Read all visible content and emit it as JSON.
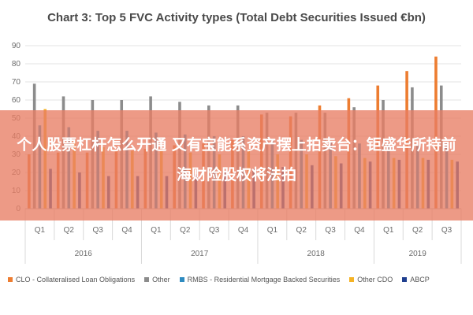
{
  "chart_data": {
    "type": "bar",
    "title": "Chart 3: Top 5 FVC Activity types (Total Debt Securities Issued €bn)",
    "xlabel": "",
    "ylabel": "",
    "ylim": [
      0,
      90
    ],
    "yticks": [
      "0",
      "10",
      "20",
      "30",
      "40",
      "50",
      "60",
      "70",
      "80",
      "90"
    ],
    "grid": true,
    "legend_position": "bottom",
    "categories": [
      "Q1",
      "Q2",
      "Q3",
      "Q4",
      "Q1",
      "Q2",
      "Q3",
      "Q4",
      "Q1",
      "Q2",
      "Q3",
      "Q4",
      "Q1",
      "Q2",
      "Q3"
    ],
    "year_groups": [
      {
        "label": "2016",
        "count": 4
      },
      {
        "label": "2017",
        "count": 4
      },
      {
        "label": "2018",
        "count": 4
      },
      {
        "label": "2019",
        "count": 3
      }
    ],
    "series": [
      {
        "name": "CLO - Collateralised Loan Obligations",
        "color": "#ed7d31",
        "values": [
          30,
          31,
          31,
          32,
          33,
          35,
          36,
          38,
          52,
          51,
          57,
          61,
          68,
          76,
          84
        ]
      },
      {
        "name": "Other",
        "color": "#8c8c8c",
        "values": [
          69,
          62,
          60,
          60,
          62,
          59,
          57,
          57,
          53,
          53,
          53,
          56,
          60,
          67,
          68
        ]
      },
      {
        "name": "RMBS - Residential Mortgage Backed Securities",
        "color": "#2e8bc0",
        "values": [
          46,
          45,
          43,
          43,
          42,
          41,
          40,
          40,
          38,
          38,
          37,
          36,
          36,
          35,
          36
        ]
      },
      {
        "name": "Other CDO",
        "color": "#f5b325",
        "values": [
          55,
          38,
          34,
          32,
          32,
          31,
          30,
          32,
          30,
          30,
          29,
          28,
          28,
          28,
          27
        ]
      },
      {
        "name": "ABCP",
        "color": "#1f3f8f",
        "values": [
          22,
          20,
          18,
          18,
          18,
          19,
          20,
          22,
          23,
          24,
          25,
          26,
          27,
          27,
          26
        ]
      }
    ]
  },
  "overlay": {
    "text": "个人股票杠杆怎么开通 又有宝能系资产摆上拍卖台：钜盛华所持前海财险股权将法拍"
  }
}
